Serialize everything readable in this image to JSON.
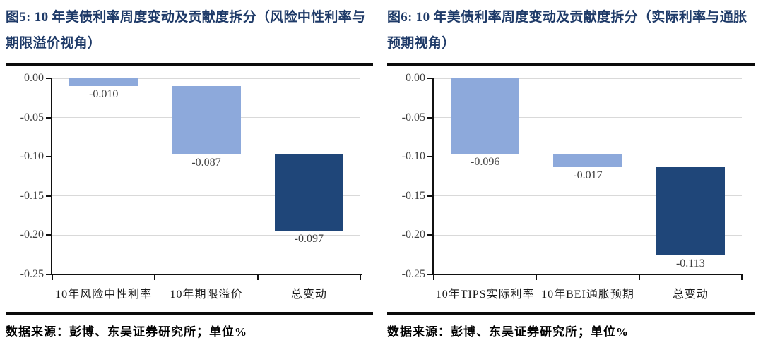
{
  "colors": {
    "title_navy": "#1e3a68",
    "light_bar_blue": "#8da9db",
    "dark_bar_navy": "#1f4679",
    "gridline_gray": "#d9d9d9",
    "axis_black": "#111111"
  },
  "figures": [
    {
      "id": "fig5",
      "title": "图5: 10 年美债利率周度变动及贡献度拆分（风险中性利率与期限溢价视角）",
      "source": "数据来源：彭博、东吴证券研究所；单位%",
      "chart_data": {
        "type": "bar",
        "subtype": "waterfall",
        "title": "10 年美债利率周度变动及贡献度拆分（风险中性利率与期限溢价视角）",
        "categories": [
          "10年风险中性利率",
          "10年期限溢价",
          "总变动"
        ],
        "values": [
          -0.01,
          -0.087,
          -0.097
        ],
        "value_labels": [
          "-0.010",
          "-0.087",
          "-0.097"
        ],
        "bar_colors": [
          "#8da9db",
          "#8da9db",
          "#1f4679"
        ],
        "ylim": [
          0,
          -0.25
        ],
        "yticks": [
          "0.00",
          "-0.05",
          "-0.10",
          "-0.15",
          "-0.20",
          "-0.25"
        ],
        "grid": true,
        "legend": false,
        "unit": "%"
      }
    },
    {
      "id": "fig6",
      "title": "图6: 10 年美债利率周度变动及贡献度拆分（实际利率与通胀预期视角）",
      "source": "数据来源：彭博、东吴证券研究所；单位%",
      "chart_data": {
        "type": "bar",
        "subtype": "waterfall",
        "title": "10 年美债利率周度变动及贡献度拆分（实际利率与通胀预期视角）",
        "categories": [
          "10年TIPS实际利率",
          "10年BEI通胀预期",
          "总变动"
        ],
        "values": [
          -0.096,
          -0.017,
          -0.113
        ],
        "value_labels": [
          "-0.096",
          "-0.017",
          "-0.113"
        ],
        "bar_colors": [
          "#8da9db",
          "#8da9db",
          "#1f4679"
        ],
        "ylim": [
          0,
          -0.25
        ],
        "yticks": [
          "0.00",
          "-0.05",
          "-0.10",
          "-0.15",
          "-0.20",
          "-0.25"
        ],
        "grid": true,
        "legend": false,
        "unit": "%"
      }
    }
  ]
}
